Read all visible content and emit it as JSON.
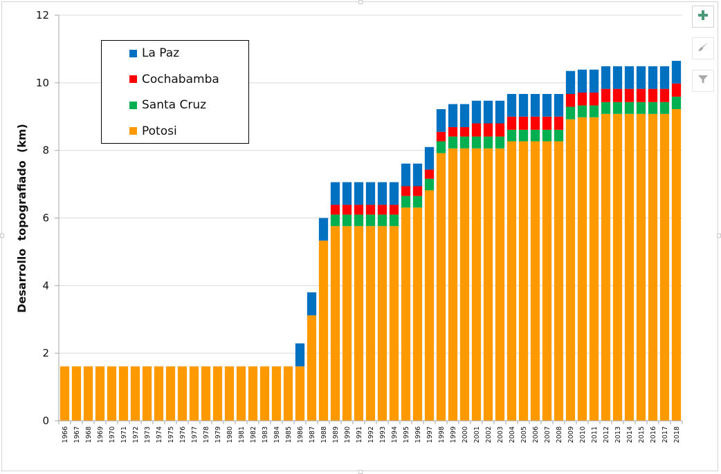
{
  "chart_data": {
    "type": "bar",
    "stacked": true,
    "title": "",
    "xlabel": "",
    "ylabel": "Desarrollo  topografiado  (km)",
    "ylim": [
      0,
      12
    ],
    "yticks": [
      0,
      2,
      4,
      6,
      8,
      10,
      12
    ],
    "grid": true,
    "legend_position": "top-left",
    "categories": [
      "1966",
      "1967",
      "1968",
      "1969",
      "1970",
      "1971",
      "1972",
      "1973",
      "1974",
      "1975",
      "1976",
      "1977",
      "1978",
      "1979",
      "1980",
      "1981",
      "1982",
      "1983",
      "1984",
      "1985",
      "1986",
      "1987",
      "1988",
      "1989",
      "1990",
      "1991",
      "1992",
      "1993",
      "1994",
      "1995",
      "1996",
      "1997",
      "1998",
      "1999",
      "2000",
      "2001",
      "2002",
      "2003",
      "2004",
      "2005",
      "2006",
      "2007",
      "2008",
      "2009",
      "2010",
      "2011",
      "2012",
      "2013",
      "2014",
      "2015",
      "2016",
      "2017",
      "2018"
    ],
    "series": [
      {
        "name": "Potosi",
        "color": "#FF9900",
        "values": [
          1.61,
          1.61,
          1.61,
          1.61,
          1.61,
          1.61,
          1.61,
          1.61,
          1.61,
          1.61,
          1.61,
          1.61,
          1.61,
          1.61,
          1.61,
          1.61,
          1.61,
          1.61,
          1.61,
          1.61,
          1.61,
          3.12,
          5.33,
          5.76,
          5.76,
          5.76,
          5.76,
          5.76,
          5.76,
          6.31,
          6.31,
          6.82,
          7.92,
          8.06,
          8.06,
          8.06,
          8.06,
          8.06,
          8.27,
          8.27,
          8.27,
          8.27,
          8.27,
          8.92,
          8.98,
          8.98,
          9.08,
          9.08,
          9.08,
          9.08,
          9.08,
          9.08,
          9.22
        ]
      },
      {
        "name": "Santa Cruz",
        "color": "#00B050",
        "values": [
          0,
          0,
          0,
          0,
          0,
          0,
          0,
          0,
          0,
          0,
          0,
          0,
          0,
          0,
          0,
          0,
          0,
          0,
          0,
          0,
          0,
          0,
          0,
          0.34,
          0.34,
          0.34,
          0.34,
          0.34,
          0.34,
          0.34,
          0.34,
          0.34,
          0.35,
          0.35,
          0.35,
          0.35,
          0.35,
          0.35,
          0.34,
          0.34,
          0.34,
          0.34,
          0.34,
          0.37,
          0.35,
          0.35,
          0.35,
          0.35,
          0.35,
          0.35,
          0.35,
          0.35,
          0.37
        ]
      },
      {
        "name": "Cochabamba",
        "color": "#FF0000",
        "values": [
          0,
          0,
          0,
          0,
          0,
          0,
          0,
          0,
          0,
          0,
          0,
          0,
          0,
          0,
          0,
          0,
          0,
          0,
          0,
          0,
          0,
          0,
          0,
          0.29,
          0.29,
          0.29,
          0.29,
          0.29,
          0.29,
          0.29,
          0.29,
          0.27,
          0.28,
          0.28,
          0.28,
          0.39,
          0.39,
          0.39,
          0.39,
          0.39,
          0.39,
          0.39,
          0.39,
          0.38,
          0.38,
          0.38,
          0.39,
          0.39,
          0.39,
          0.39,
          0.39,
          0.39,
          0.39
        ]
      },
      {
        "name": "La Paz",
        "color": "#0070C0",
        "values": [
          0,
          0,
          0,
          0,
          0,
          0,
          0,
          0,
          0,
          0,
          0,
          0,
          0,
          0,
          0,
          0,
          0,
          0,
          0,
          0,
          0.68,
          0.68,
          0.67,
          0.67,
          0.67,
          0.67,
          0.67,
          0.67,
          0.67,
          0.67,
          0.67,
          0.67,
          0.67,
          0.68,
          0.68,
          0.67,
          0.67,
          0.67,
          0.67,
          0.67,
          0.67,
          0.67,
          0.67,
          0.68,
          0.68,
          0.68,
          0.67,
          0.67,
          0.67,
          0.67,
          0.67,
          0.67,
          0.67
        ]
      }
    ],
    "legend_order": [
      "La Paz",
      "Cochabamba",
      "Santa Cruz",
      "Potosi"
    ]
  },
  "side_buttons": [
    {
      "name": "chart-elements",
      "icon": "plus-icon"
    },
    {
      "name": "chart-styles",
      "icon": "paintbrush-icon"
    },
    {
      "name": "chart-filters",
      "icon": "funnel-icon"
    }
  ],
  "colors": {
    "gridline": "#D9D9D9",
    "axis": "#A6A6A6",
    "plus_icon": "#217346"
  }
}
